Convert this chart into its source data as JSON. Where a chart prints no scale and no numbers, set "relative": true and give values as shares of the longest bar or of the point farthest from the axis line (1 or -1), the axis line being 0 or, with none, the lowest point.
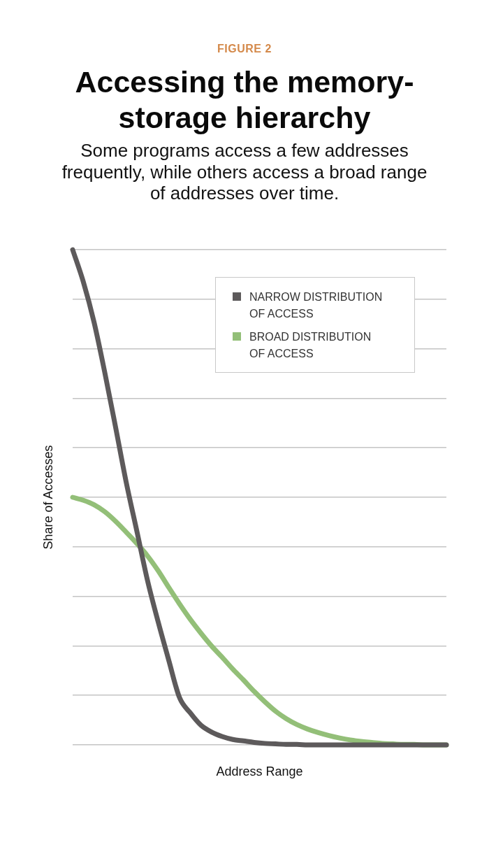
{
  "chart_data": {
    "type": "line",
    "title": "Accessing the memory-storage hierarchy",
    "subtitle": "Some programs access a few addresses frequently, while others access a broad range of addresses over time.",
    "annotations": [
      "FIGURE 2"
    ],
    "xlabel": "Address Range",
    "ylabel": "Share of Accesses",
    "relative": true,
    "grid": "y",
    "legend": "top right",
    "marker": "none",
    "line_style": "solid",
    "categories": [
      null,
      null,
      null,
      null,
      null,
      null,
      null,
      null,
      null,
      null,
      null,
      null,
      null,
      null,
      null,
      null,
      null,
      null,
      null,
      null,
      null,
      null,
      null,
      null,
      null,
      null,
      null,
      null,
      null,
      null,
      null,
      null,
      null,
      null,
      null,
      null
    ],
    "series": [
      {
        "name": "NARROW DISTRIBUTION OF ACCESS",
        "color": "#5d5a5b",
        "values": [
          1,
          0.935,
          0.854,
          0.753,
          0.644,
          0.532,
          0.433,
          0.333,
          0.249,
          0.171,
          0.096,
          0.065,
          0.04,
          0.026,
          0.017,
          0.011,
          0.008,
          0.005,
          0.003,
          0.002,
          0.001,
          0.001,
          0,
          0,
          0,
          0,
          0,
          0,
          0,
          0,
          0,
          0,
          0,
          0,
          0,
          0
        ]
      },
      {
        "name": "BROAD DISTRIBUTION OF ACCESS",
        "color": "#93bf78",
        "values": [
          0.5,
          0.494,
          0.485,
          0.471,
          0.452,
          0.43,
          0.407,
          0.382,
          0.352,
          0.318,
          0.285,
          0.254,
          0.226,
          0.2,
          0.177,
          0.153,
          0.131,
          0.108,
          0.087,
          0.068,
          0.053,
          0.041,
          0.032,
          0.025,
          0.019,
          0.014,
          0.01,
          0.007,
          0.005,
          0.003,
          0.002,
          0.001,
          0.001,
          0,
          0,
          0
        ]
      }
    ]
  }
}
